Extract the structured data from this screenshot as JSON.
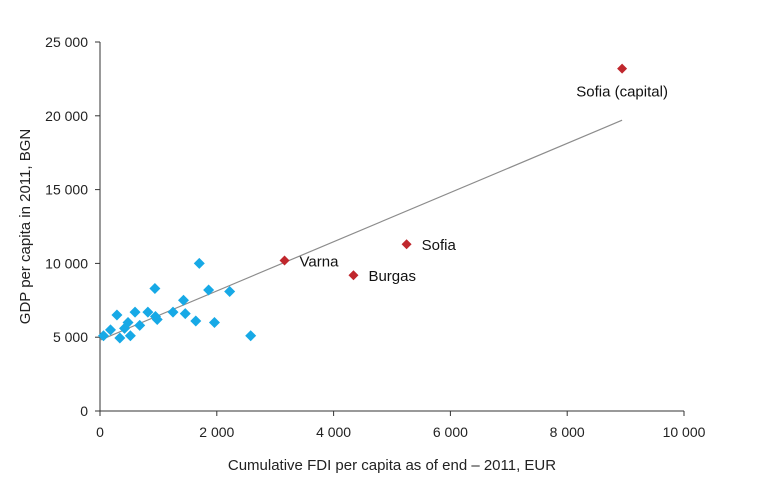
{
  "chart_data": {
    "type": "scatter",
    "xlabel": "Cumulative FDI per capita as of end – 2011, EUR",
    "ylabel": "GDP per capita in 2011, BGN",
    "xlim": [
      0,
      10000
    ],
    "ylim": [
      0,
      25000
    ],
    "x_ticks": [
      0,
      2000,
      4000,
      6000,
      8000,
      10000
    ],
    "y_ticks": [
      0,
      5000,
      10000,
      15000,
      20000,
      25000
    ],
    "x_tick_labels": [
      "0",
      "2 000",
      "4 000",
      "6 000",
      "8 000",
      "10 000"
    ],
    "y_tick_labels": [
      "0",
      "5 000",
      "10 000",
      "15 000",
      "20 000",
      "25 000"
    ],
    "grid": false,
    "colors": {
      "regions": "#17a9e6",
      "highlighted": "#c0272d",
      "trendline": "#8c8c8c"
    },
    "series": [
      {
        "points": [
          {
            "x": 60,
            "y": 5100
          },
          {
            "x": 180,
            "y": 5500
          },
          {
            "x": 290,
            "y": 6500
          },
          {
            "x": 340,
            "y": 4950
          },
          {
            "x": 420,
            "y": 5600
          },
          {
            "x": 480,
            "y": 6000
          },
          {
            "x": 520,
            "y": 5100
          },
          {
            "x": 600,
            "y": 6700
          },
          {
            "x": 680,
            "y": 5800
          },
          {
            "x": 820,
            "y": 6700
          },
          {
            "x": 950,
            "y": 6400
          },
          {
            "x": 940,
            "y": 8300
          },
          {
            "x": 980,
            "y": 6200
          },
          {
            "x": 1250,
            "y": 6700
          },
          {
            "x": 1430,
            "y": 7500
          },
          {
            "x": 1460,
            "y": 6600
          },
          {
            "x": 1640,
            "y": 6100
          },
          {
            "x": 1700,
            "y": 10000
          },
          {
            "x": 1860,
            "y": 8200
          },
          {
            "x": 1960,
            "y": 6000
          },
          {
            "x": 2220,
            "y": 8100
          },
          {
            "x": 2580,
            "y": 5100
          }
        ]
      },
      {
        "points": [
          {
            "x": 3160,
            "y": 10200,
            "label": "Varna"
          },
          {
            "x": 4340,
            "y": 9200,
            "label": "Burgas"
          },
          {
            "x": 5250,
            "y": 11300,
            "label": "Sofia"
          },
          {
            "x": 8940,
            "y": 23200,
            "label": "Sofia (capital)"
          }
        ]
      }
    ],
    "trendline": {
      "x": [
        0,
        8940
      ],
      "y": [
        4800,
        19700
      ]
    }
  }
}
